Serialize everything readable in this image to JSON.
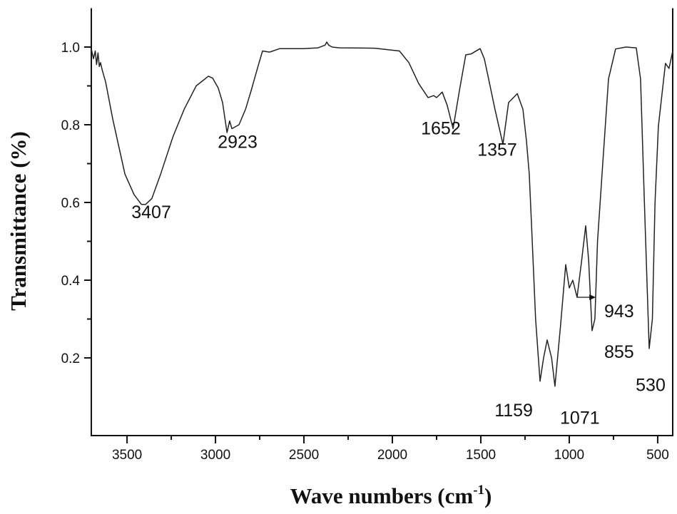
{
  "chart_data": {
    "type": "line",
    "title": "",
    "xlabel": "Wave numbers (cm",
    "xlabel_superscript": "-1",
    "xlabel_suffix": ")",
    "ylabel": "Transmittance (%)",
    "xlim": [
      3702,
      415
    ],
    "ylim": [
      0,
      1.1
    ],
    "x_reversed": true,
    "grid": false,
    "line_color": "#222222",
    "x_ticks": [
      3500,
      3000,
      2500,
      2000,
      1500,
      1000,
      500
    ],
    "x_tick_labels": [
      "3500",
      "3000",
      "2500",
      "2000",
      "1500",
      "1000",
      "500"
    ],
    "y_ticks": [
      0.2,
      0.4,
      0.6,
      0.8,
      1.0
    ],
    "y_tick_labels": [
      "0.2",
      "0.4",
      "0.6",
      "0.8",
      "1.0"
    ],
    "series": [
      {
        "x": [
          3702,
          3690,
          3680,
          3672,
          3664,
          3657,
          3650,
          3640,
          3621,
          3581,
          3512,
          3460,
          3419,
          3395,
          3360,
          3310,
          3240,
          3177,
          3109,
          3040,
          3016,
          2985,
          2960,
          2935,
          2920,
          2907,
          2867,
          2830,
          2798,
          2760,
          2734,
          2694,
          2637,
          2504,
          2420,
          2380,
          2371,
          2360,
          2340,
          2300,
          2100,
          1960,
          1907,
          1851,
          1798,
          1766,
          1750,
          1718,
          1690,
          1657,
          1620,
          1585,
          1556,
          1504,
          1480,
          1456,
          1420,
          1375,
          1360,
          1343,
          1294,
          1262,
          1242,
          1226,
          1214,
          1190,
          1165,
          1145,
          1125,
          1100,
          1081,
          1050,
          1020,
          1000,
          980,
          956,
          930,
          907,
          890,
          871,
          855,
          840,
          810,
          778,
          738,
          680,
          621,
          597,
          575,
          548,
          530,
          515,
          496,
          456,
          436,
          415
        ],
        "y": [
          0.995,
          0.97,
          0.99,
          0.955,
          0.985,
          0.95,
          0.96,
          0.94,
          0.91,
          0.815,
          0.673,
          0.62,
          0.595,
          0.595,
          0.61,
          0.673,
          0.77,
          0.84,
          0.9,
          0.925,
          0.92,
          0.895,
          0.857,
          0.78,
          0.81,
          0.79,
          0.8,
          0.84,
          0.888,
          0.95,
          0.99,
          0.987,
          0.996,
          0.996,
          0.998,
          1.005,
          1.013,
          1.005,
          1.0,
          0.998,
          0.997,
          0.99,
          0.96,
          0.906,
          0.87,
          0.875,
          0.87,
          0.884,
          0.85,
          0.79,
          0.89,
          0.98,
          0.982,
          0.996,
          0.97,
          0.918,
          0.84,
          0.75,
          0.8,
          0.857,
          0.88,
          0.84,
          0.76,
          0.673,
          0.55,
          0.3,
          0.14,
          0.2,
          0.246,
          0.2,
          0.127,
          0.28,
          0.44,
          0.38,
          0.4,
          0.356,
          0.45,
          0.54,
          0.45,
          0.27,
          0.3,
          0.5,
          0.705,
          0.918,
          0.995,
          1.0,
          0.998,
          0.918,
          0.6,
          0.224,
          0.3,
          0.6,
          0.796,
          0.958,
          0.945,
          0.99
        ]
      }
    ],
    "annotations": [
      {
        "text": "3407",
        "x": 3363,
        "y": 0.56
      },
      {
        "text": "2923",
        "x": 2875,
        "y": 0.74
      },
      {
        "text": "1652",
        "x": 1726,
        "y": 0.775
      },
      {
        "text": "1357",
        "x": 1407,
        "y": 0.72
      },
      {
        "text": "1159",
        "x": 1314,
        "y": 0.05
      },
      {
        "text": "1071",
        "x": 940,
        "y": 0.03
      },
      {
        "text": "943",
        "x": 718,
        "y": 0.305
      },
      {
        "text": "855",
        "x": 718,
        "y": 0.2
      },
      {
        "text": "530",
        "x": 540,
        "y": 0.115
      }
    ],
    "arrow": {
      "from": [
        956,
        0.356
      ],
      "to": [
        850,
        0.356
      ]
    }
  }
}
